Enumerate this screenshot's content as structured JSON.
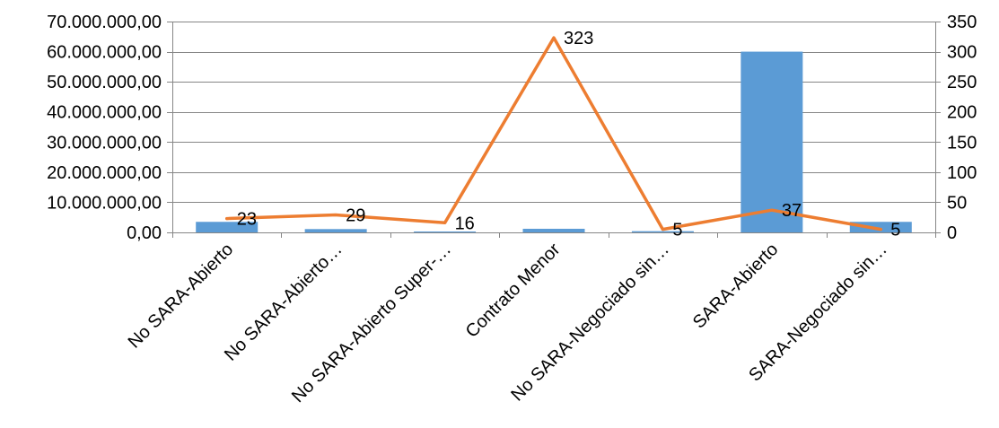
{
  "chart_data": {
    "type": "bar",
    "categories": [
      "No SARA-Abierto",
      "No SARA-Abierto…",
      "No SARA-Abierto Super-…",
      "Contrato Menor",
      "No SARA-Negociado sin…",
      "SARA-Abierto",
      "SARA-Negociado sin…"
    ],
    "series": [
      {
        "type": "bar",
        "axis": "left",
        "color": "#5B9BD5",
        "values": [
          3500000,
          1100000,
          300000,
          1200000,
          400000,
          60000000,
          3500000
        ]
      },
      {
        "type": "line",
        "axis": "right",
        "color": "#ED7D31",
        "values": [
          23,
          29,
          16,
          323,
          5,
          37,
          5
        ],
        "data_labels": [
          "23",
          "29",
          "16",
          "323",
          "5",
          "37",
          "5"
        ]
      }
    ],
    "y_left": {
      "ylim": [
        0,
        70000000
      ],
      "ticks": [
        0,
        10000000,
        20000000,
        30000000,
        40000000,
        50000000,
        60000000,
        70000000
      ],
      "tick_labels": [
        "0,00",
        "10.000.000,00",
        "20.000.000,00",
        "30.000.000,00",
        "40.000.000,00",
        "50.000.000,00",
        "60.000.000,00",
        "70.000.000,00"
      ]
    },
    "y_right": {
      "ylim": [
        0,
        350
      ],
      "ticks": [
        0,
        50,
        100,
        150,
        200,
        250,
        300,
        350
      ],
      "tick_labels": [
        "0",
        "50",
        "100",
        "150",
        "200",
        "250",
        "300",
        "350"
      ]
    },
    "grid": true,
    "legend": "none"
  }
}
